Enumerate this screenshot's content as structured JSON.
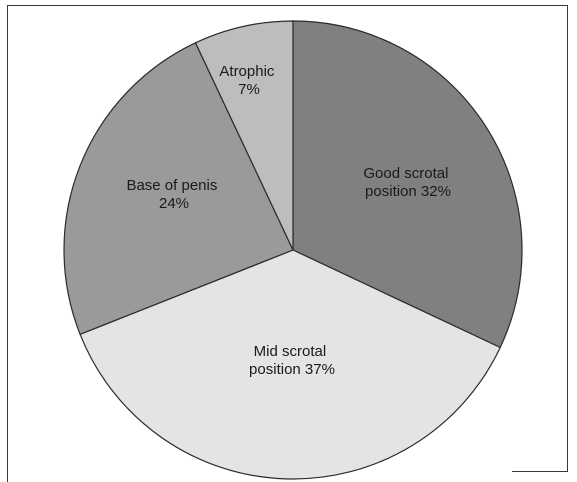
{
  "chart_data": {
    "type": "pie",
    "title": "",
    "slices": [
      {
        "name": "Good scrotal position",
        "label_lines": [
          "Good scrotal",
          "position 32%"
        ],
        "value": 32,
        "color": "#808080"
      },
      {
        "name": "Mid scrotal position",
        "label_lines": [
          "Mid scrotal",
          "position 37%"
        ],
        "value": 37,
        "color": "#e4e4e4"
      },
      {
        "name": "Base of penis",
        "label_lines": [
          "Base of penis",
          "24%"
        ],
        "value": 24,
        "color": "#9a9a9a"
      },
      {
        "name": "Atrophic",
        "label_lines": [
          "Atrophic",
          "7%"
        ],
        "value": 7,
        "color": "#bdbdbd"
      }
    ],
    "start": "12 o'clock",
    "direction": "clockwise",
    "legend": "none"
  }
}
